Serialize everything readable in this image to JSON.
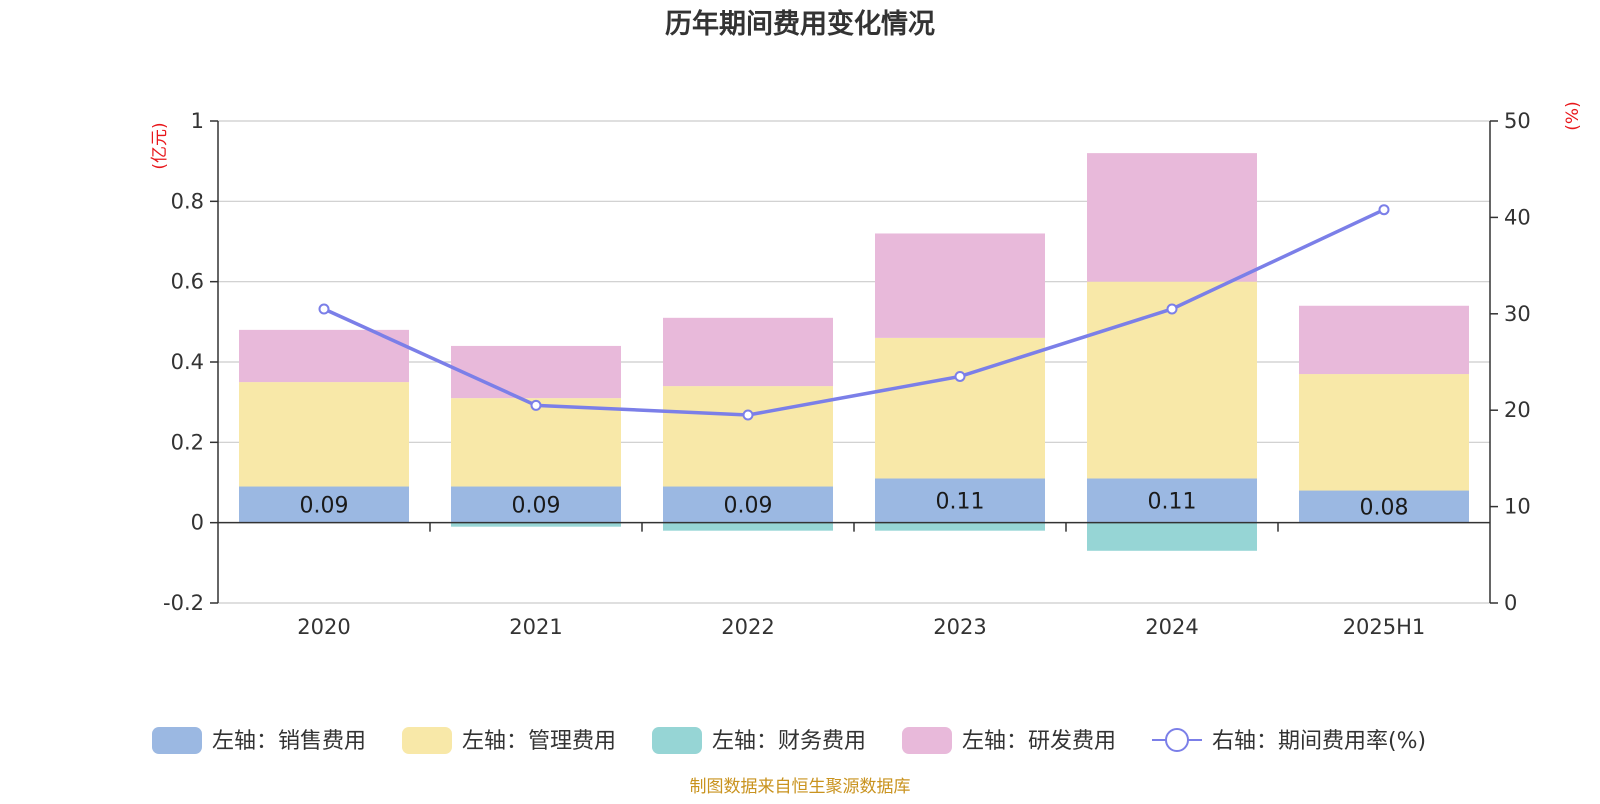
{
  "chart_data": {
    "type": "bar",
    "title": "历年期间费用变化情况",
    "categories": [
      "2020",
      "2021",
      "2022",
      "2023",
      "2024",
      "2025H1"
    ],
    "left_axis": {
      "unit": "(亿元)",
      "ylim": [
        -0.2,
        1
      ],
      "ticks": [
        "1",
        "0.8",
        "0.6",
        "0.4",
        "0.2",
        "0",
        "-0.2"
      ]
    },
    "right_axis": {
      "unit": "(%)",
      "ylim": [
        0,
        50
      ],
      "ticks": [
        "50",
        "40",
        "30",
        "20",
        "10",
        "0"
      ]
    },
    "series": [
      {
        "name": "左轴：销售费用",
        "type": "bar",
        "axis": "left",
        "color": "#9bb8e2",
        "values": [
          0.09,
          0.09,
          0.09,
          0.11,
          0.11,
          0.08
        ],
        "labels": [
          "0.09",
          "0.09",
          "0.09",
          "0.11",
          "0.11",
          "0.08"
        ]
      },
      {
        "name": "左轴：管理费用",
        "type": "bar",
        "axis": "left",
        "color": "#f8e8a8",
        "values": [
          0.26,
          0.22,
          0.25,
          0.35,
          0.49,
          0.29
        ]
      },
      {
        "name": "左轴：财务费用",
        "type": "bar",
        "axis": "left",
        "color": "#96d5d5",
        "values": [
          0.0,
          -0.01,
          -0.02,
          -0.02,
          -0.07,
          0.0
        ]
      },
      {
        "name": "左轴：研发费用",
        "type": "bar",
        "axis": "left",
        "color": "#e8b9da",
        "values": [
          0.13,
          0.13,
          0.17,
          0.26,
          0.32,
          0.17
        ]
      },
      {
        "name": "右轴：期间费用率(%)",
        "type": "line",
        "axis": "right",
        "color": "#7b7fe8",
        "values": [
          30.5,
          20.5,
          19.5,
          23.5,
          30.5,
          40.8
        ]
      }
    ],
    "grid": true,
    "legend_position": "bottom"
  },
  "source_note": "制图数据来自恒生聚源数据库"
}
